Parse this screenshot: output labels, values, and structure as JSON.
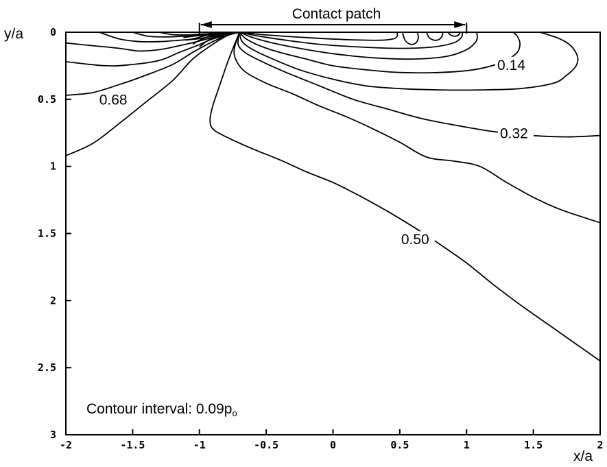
{
  "chart_data": {
    "type": "contour",
    "xlabel": "x/a",
    "ylabel": "y/a",
    "xlim": [
      -2,
      2
    ],
    "ylim": [
      0,
      3
    ],
    "y_axis_inverted": true,
    "x_ticks": [
      -2,
      -1.5,
      -1,
      -0.5,
      0,
      0.5,
      1,
      1.5,
      2
    ],
    "x_tick_labels": [
      "-2",
      "-1.5",
      "-1",
      "-0.5",
      "0",
      "0.5",
      "1",
      "1.5",
      "2"
    ],
    "y_ticks": [
      0,
      0.5,
      1,
      1.5,
      2,
      2.5,
      3
    ],
    "y_tick_labels": [
      "0",
      "0.5",
      "1",
      "1.5",
      "2",
      "2.5",
      "3"
    ],
    "grid": false,
    "contact_patch": {
      "label": "Contact patch",
      "x_range": [
        -1,
        1
      ]
    },
    "annotation": "Contour interval: 0.09p",
    "annotation_subscript": "o",
    "contour_interval": 0.09,
    "contour_labels": [
      {
        "text": "0.68",
        "x": -1.75,
        "y": 0.53
      },
      {
        "text": "0.14",
        "x": 1.23,
        "y": 0.27
      },
      {
        "text": "0.32",
        "x": 1.25,
        "y": 0.78
      },
      {
        "text": "0.50",
        "x": 0.51,
        "y": 1.57
      }
    ],
    "contours": [
      {
        "name": "c1",
        "points": [
          [
            -2,
            0.92
          ],
          [
            -1.8,
            0.83
          ],
          [
            -1.6,
            0.68
          ],
          [
            -1.4,
            0.52
          ],
          [
            -1.2,
            0.36
          ],
          [
            -1.05,
            0.2
          ],
          [
            -0.9,
            0.09
          ],
          [
            -0.78,
            0.02
          ],
          [
            -0.7,
            0
          ]
        ]
      },
      {
        "name": "c2",
        "points": [
          [
            -2,
            0.47
          ],
          [
            -1.8,
            0.45
          ],
          [
            -1.6,
            0.39
          ],
          [
            -1.4,
            0.32
          ],
          [
            -1.2,
            0.24
          ],
          [
            -1.05,
            0.15
          ],
          [
            -0.9,
            0.07
          ],
          [
            -0.78,
            0.02
          ],
          [
            -0.7,
            0
          ]
        ]
      },
      {
        "name": "c3",
        "points": [
          [
            -2,
            0.22
          ],
          [
            -1.7,
            0.25
          ],
          [
            -1.5,
            0.24
          ],
          [
            -1.3,
            0.21
          ],
          [
            -1.15,
            0.15
          ],
          [
            -1.02,
            0.1
          ],
          [
            -0.9,
            0.05
          ],
          [
            -0.78,
            0.02
          ],
          [
            -0.7,
            0
          ]
        ]
      },
      {
        "name": "c4",
        "points": [
          [
            -2,
            0.08
          ],
          [
            -1.8,
            0.1
          ],
          [
            -1.6,
            0.12
          ],
          [
            -1.45,
            0.14
          ],
          [
            -1.3,
            0.13
          ],
          [
            -1.15,
            0.1
          ],
          [
            -1.02,
            0.07
          ],
          [
            -0.9,
            0.04
          ],
          [
            -0.78,
            0.015
          ],
          [
            -0.7,
            0
          ]
        ]
      },
      {
        "name": "c5",
        "points": [
          [
            -1.75,
            0
          ],
          [
            -1.6,
            0.05
          ],
          [
            -1.45,
            0.07
          ],
          [
            -1.3,
            0.07
          ],
          [
            -1.15,
            0.06
          ],
          [
            -1.02,
            0.05
          ],
          [
            -0.9,
            0.03
          ],
          [
            -0.78,
            0.01
          ],
          [
            -0.7,
            0
          ]
        ]
      },
      {
        "name": "c6",
        "points": [
          [
            -1.5,
            0
          ],
          [
            -1.38,
            0.03
          ],
          [
            -1.25,
            0.035
          ],
          [
            -1.12,
            0.03
          ],
          [
            -1.0,
            0.025
          ],
          [
            -0.88,
            0.015
          ],
          [
            -0.78,
            0.005
          ],
          [
            -0.7,
            0
          ]
        ]
      },
      {
        "name": "c7",
        "points": [
          [
            -1.3,
            0
          ],
          [
            -1.2,
            0.018
          ],
          [
            -1.1,
            0.02
          ],
          [
            -1.0,
            0.018
          ],
          [
            -0.9,
            0.01
          ],
          [
            -0.8,
            0.004
          ],
          [
            -0.7,
            0
          ]
        ]
      },
      {
        "name": "c-050",
        "points": [
          [
            -0.7,
            0
          ],
          [
            -0.78,
            0.2
          ],
          [
            -0.85,
            0.4
          ],
          [
            -0.9,
            0.55
          ],
          [
            -0.92,
            0.65
          ],
          [
            -0.9,
            0.72
          ],
          [
            -0.8,
            0.78
          ],
          [
            -0.6,
            0.87
          ],
          [
            -0.4,
            0.95
          ],
          [
            -0.2,
            1.04
          ],
          [
            0,
            1.12
          ],
          [
            0.2,
            1.22
          ],
          [
            0.4,
            1.33
          ],
          [
            0.6,
            1.45
          ],
          [
            0.8,
            1.58
          ],
          [
            1.0,
            1.72
          ],
          [
            1.2,
            1.88
          ],
          [
            1.4,
            2.03
          ],
          [
            1.6,
            2.17
          ],
          [
            1.8,
            2.31
          ],
          [
            2,
            2.45
          ]
        ]
      },
      {
        "name": "c-041",
        "points": [
          [
            -0.7,
            0
          ],
          [
            -0.74,
            0.13
          ],
          [
            -0.72,
            0.22
          ],
          [
            -0.65,
            0.3
          ],
          [
            -0.5,
            0.38
          ],
          [
            -0.3,
            0.46
          ],
          [
            -0.1,
            0.55
          ],
          [
            0.1,
            0.63
          ],
          [
            0.3,
            0.72
          ],
          [
            0.5,
            0.82
          ],
          [
            0.7,
            0.93
          ],
          [
            0.9,
            0.96
          ],
          [
            1.1,
            1.0
          ],
          [
            1.3,
            1.12
          ],
          [
            1.5,
            1.23
          ],
          [
            1.7,
            1.32
          ],
          [
            2,
            1.42
          ]
        ]
      },
      {
        "name": "c-032",
        "points": [
          [
            -0.7,
            0
          ],
          [
            -0.71,
            0.09
          ],
          [
            -0.66,
            0.15
          ],
          [
            -0.55,
            0.21
          ],
          [
            -0.35,
            0.3
          ],
          [
            -0.1,
            0.4
          ],
          [
            0.15,
            0.5
          ],
          [
            0.4,
            0.57
          ],
          [
            0.65,
            0.64
          ],
          [
            0.9,
            0.69
          ],
          [
            1.2,
            0.74
          ],
          [
            1.5,
            0.77
          ],
          [
            1.75,
            0.78
          ],
          [
            2,
            0.77
          ]
        ]
      },
      {
        "name": "c-023",
        "points": [
          [
            -0.7,
            0
          ],
          [
            -0.68,
            0.07
          ],
          [
            -0.6,
            0.13
          ],
          [
            -0.45,
            0.2
          ],
          [
            -0.25,
            0.28
          ],
          [
            0,
            0.35
          ],
          [
            0.25,
            0.4
          ],
          [
            0.5,
            0.42
          ],
          [
            0.8,
            0.43
          ],
          [
            1.1,
            0.43
          ],
          [
            1.4,
            0.42
          ],
          [
            1.65,
            0.38
          ],
          [
            1.75,
            0.32
          ],
          [
            1.82,
            0.25
          ],
          [
            1.83,
            0.18
          ],
          [
            1.78,
            0.1
          ],
          [
            1.7,
            0.05
          ],
          [
            1.6,
            0.015
          ],
          [
            1.55,
            0
          ]
        ]
      },
      {
        "name": "c-014",
        "points": [
          [
            -0.7,
            0
          ],
          [
            -0.65,
            0.05
          ],
          [
            -0.55,
            0.1
          ],
          [
            -0.4,
            0.15
          ],
          [
            -0.2,
            0.2
          ],
          [
            0,
            0.25
          ],
          [
            0.25,
            0.28
          ],
          [
            0.5,
            0.3
          ],
          [
            0.8,
            0.3
          ],
          [
            1.05,
            0.28
          ],
          [
            1.25,
            0.23
          ],
          [
            1.37,
            0.16
          ],
          [
            1.4,
            0.09
          ],
          [
            1.38,
            0.03
          ],
          [
            1.35,
            0
          ]
        ]
      },
      {
        "name": "c-005",
        "points": [
          [
            -0.7,
            0
          ],
          [
            -0.6,
            0.04
          ],
          [
            -0.45,
            0.08
          ],
          [
            -0.25,
            0.12
          ],
          [
            0,
            0.16
          ],
          [
            0.3,
            0.19
          ],
          [
            0.6,
            0.2
          ],
          [
            0.85,
            0.18
          ],
          [
            1.0,
            0.13
          ],
          [
            1.07,
            0.07
          ],
          [
            1.08,
            0.02
          ],
          [
            1.07,
            0
          ]
        ]
      },
      {
        "name": "c-i1",
        "points": [
          [
            -0.7,
            0
          ],
          [
            -0.55,
            0.03
          ],
          [
            -0.35,
            0.06
          ],
          [
            -0.1,
            0.09
          ],
          [
            0.2,
            0.11
          ],
          [
            0.5,
            0.12
          ],
          [
            0.75,
            0.11
          ],
          [
            0.9,
            0.08
          ],
          [
            0.96,
            0.04
          ],
          [
            0.97,
            0
          ]
        ]
      },
      {
        "name": "c-i2",
        "points": [
          [
            -0.7,
            0
          ],
          [
            -0.5,
            0.02
          ],
          [
            -0.2,
            0.04
          ],
          [
            0.1,
            0.055
          ],
          [
            0.35,
            0.06
          ],
          [
            0.45,
            0.05
          ],
          [
            0.48,
            0.03
          ],
          [
            0.48,
            0
          ]
        ]
      },
      {
        "name": "loop-a",
        "points": [
          [
            0.52,
            0
          ],
          [
            0.54,
            0.06
          ],
          [
            0.58,
            0.09
          ],
          [
            0.62,
            0.08
          ],
          [
            0.64,
            0.04
          ],
          [
            0.63,
            0
          ]
        ]
      },
      {
        "name": "loop-b",
        "points": [
          [
            0.7,
            0
          ],
          [
            0.72,
            0.04
          ],
          [
            0.76,
            0.06
          ],
          [
            0.8,
            0.05
          ],
          [
            0.82,
            0.02
          ],
          [
            0.82,
            0
          ]
        ]
      },
      {
        "name": "loop-c",
        "points": [
          [
            0.86,
            0
          ],
          [
            0.88,
            0.02
          ],
          [
            0.91,
            0.03
          ],
          [
            0.94,
            0.02
          ],
          [
            0.95,
            0
          ]
        ]
      },
      {
        "name": "cluster-1",
        "points": [
          [
            -1.0,
            0.11
          ],
          [
            -0.95,
            0.07
          ],
          [
            -0.88,
            0.03
          ],
          [
            -0.8,
            0.01
          ],
          [
            -0.72,
            0
          ]
        ]
      },
      {
        "name": "cluster-2",
        "points": [
          [
            -1.05,
            0.09
          ],
          [
            -1.0,
            0.06
          ],
          [
            -0.92,
            0.03
          ],
          [
            -0.83,
            0.01
          ],
          [
            -0.73,
            0
          ]
        ]
      },
      {
        "name": "cluster-3",
        "points": [
          [
            -1.1,
            0.06
          ],
          [
            -1.03,
            0.045
          ],
          [
            -0.95,
            0.025
          ],
          [
            -0.85,
            0.01
          ],
          [
            -0.74,
            0
          ]
        ]
      },
      {
        "name": "cluster-4",
        "points": [
          [
            -1.12,
            0.04
          ],
          [
            -1.05,
            0.03
          ],
          [
            -0.97,
            0.02
          ],
          [
            -0.87,
            0.008
          ],
          [
            -0.75,
            0
          ]
        ]
      },
      {
        "name": "cluster-5",
        "points": [
          [
            -1.08,
            0.02
          ],
          [
            -1.0,
            0.015
          ],
          [
            -0.92,
            0.01
          ],
          [
            -0.82,
            0.004
          ],
          [
            -0.74,
            0
          ]
        ]
      }
    ]
  }
}
